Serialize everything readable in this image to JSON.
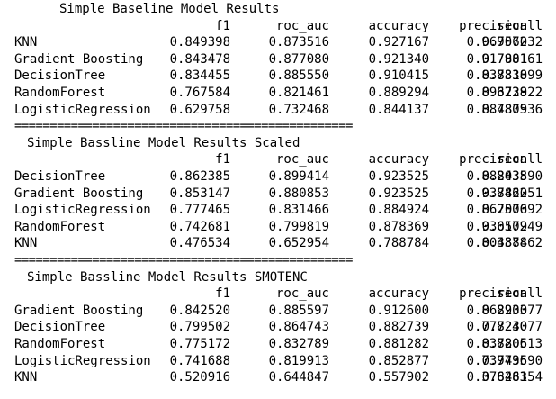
{
  "columns": [
    "f1",
    "roc_auc",
    "accuracy",
    "precision",
    "recall"
  ],
  "separator": "================================================",
  "sections": [
    {
      "title": "Simple Baseline Model Results",
      "rows": [
        {
          "model": "KNN",
          "values": [
            "0.849398",
            "0.873516",
            "0.927167",
            "0.969072",
            "0.756032"
          ]
        },
        {
          "model": "Gradient Boosting",
          "values": [
            "0.843478",
            "0.877080",
            "0.921340",
            "0.917981",
            "0.780161"
          ]
        },
        {
          "model": "DecisionTree",
          "values": [
            "0.834455",
            "0.885550",
            "0.910415",
            "0.837838",
            "0.831099"
          ]
        },
        {
          "model": "RandomForest",
          "values": [
            "0.767584",
            "0.821461",
            "0.889294",
            "0.893238",
            "0.672922"
          ]
        },
        {
          "model": "LogisticRegression",
          "values": [
            "0.629758",
            "0.732468",
            "0.844137",
            "0.887805",
            "0.487936"
          ]
        }
      ]
    },
    {
      "title": "Simple Bassline Model Results Scaled",
      "rows": [
        {
          "model": "DecisionTree",
          "values": [
            "0.862385",
            "0.899414",
            "0.923525",
            "0.882038",
            "0.843590"
          ]
        },
        {
          "model": "Gradient Boosting",
          "values": [
            "0.853147",
            "0.880853",
            "0.923525",
            "0.938462",
            "0.782051"
          ]
        },
        {
          "model": "LogisticRegression",
          "values": [
            "0.777465",
            "0.831466",
            "0.884924",
            "0.862500",
            "0.707692"
          ]
        },
        {
          "model": "RandomForest",
          "values": [
            "0.742681",
            "0.799819",
            "0.878369",
            "0.930502",
            "0.617949"
          ]
        },
        {
          "model": "KNN",
          "values": [
            "0.476534",
            "0.652954",
            "0.788784",
            "0.804878",
            "0.338462"
          ]
        }
      ]
    },
    {
      "title": "Simple Bassline Model Results SMOTENC",
      "rows": [
        {
          "model": "Gradient Boosting",
          "values": [
            "0.842520",
            "0.885597",
            "0.912600",
            "0.862903",
            "0.823077"
          ]
        },
        {
          "model": "DecisionTree",
          "values": [
            "0.799502",
            "0.864743",
            "0.882739",
            "0.777240",
            "0.823077"
          ]
        },
        {
          "model": "RandomForest",
          "values": [
            "0.775172",
            "0.832789",
            "0.881282",
            "0.838806",
            "0.720513"
          ]
        },
        {
          "model": "LogisticRegression",
          "values": [
            "0.741688",
            "0.819913",
            "0.852877",
            "0.739796",
            "0.743590"
          ]
        },
        {
          "model": "KNN",
          "values": [
            "0.520916",
            "0.644847",
            "0.557902",
            "0.376283",
            "0.846154"
          ]
        }
      ]
    }
  ]
}
